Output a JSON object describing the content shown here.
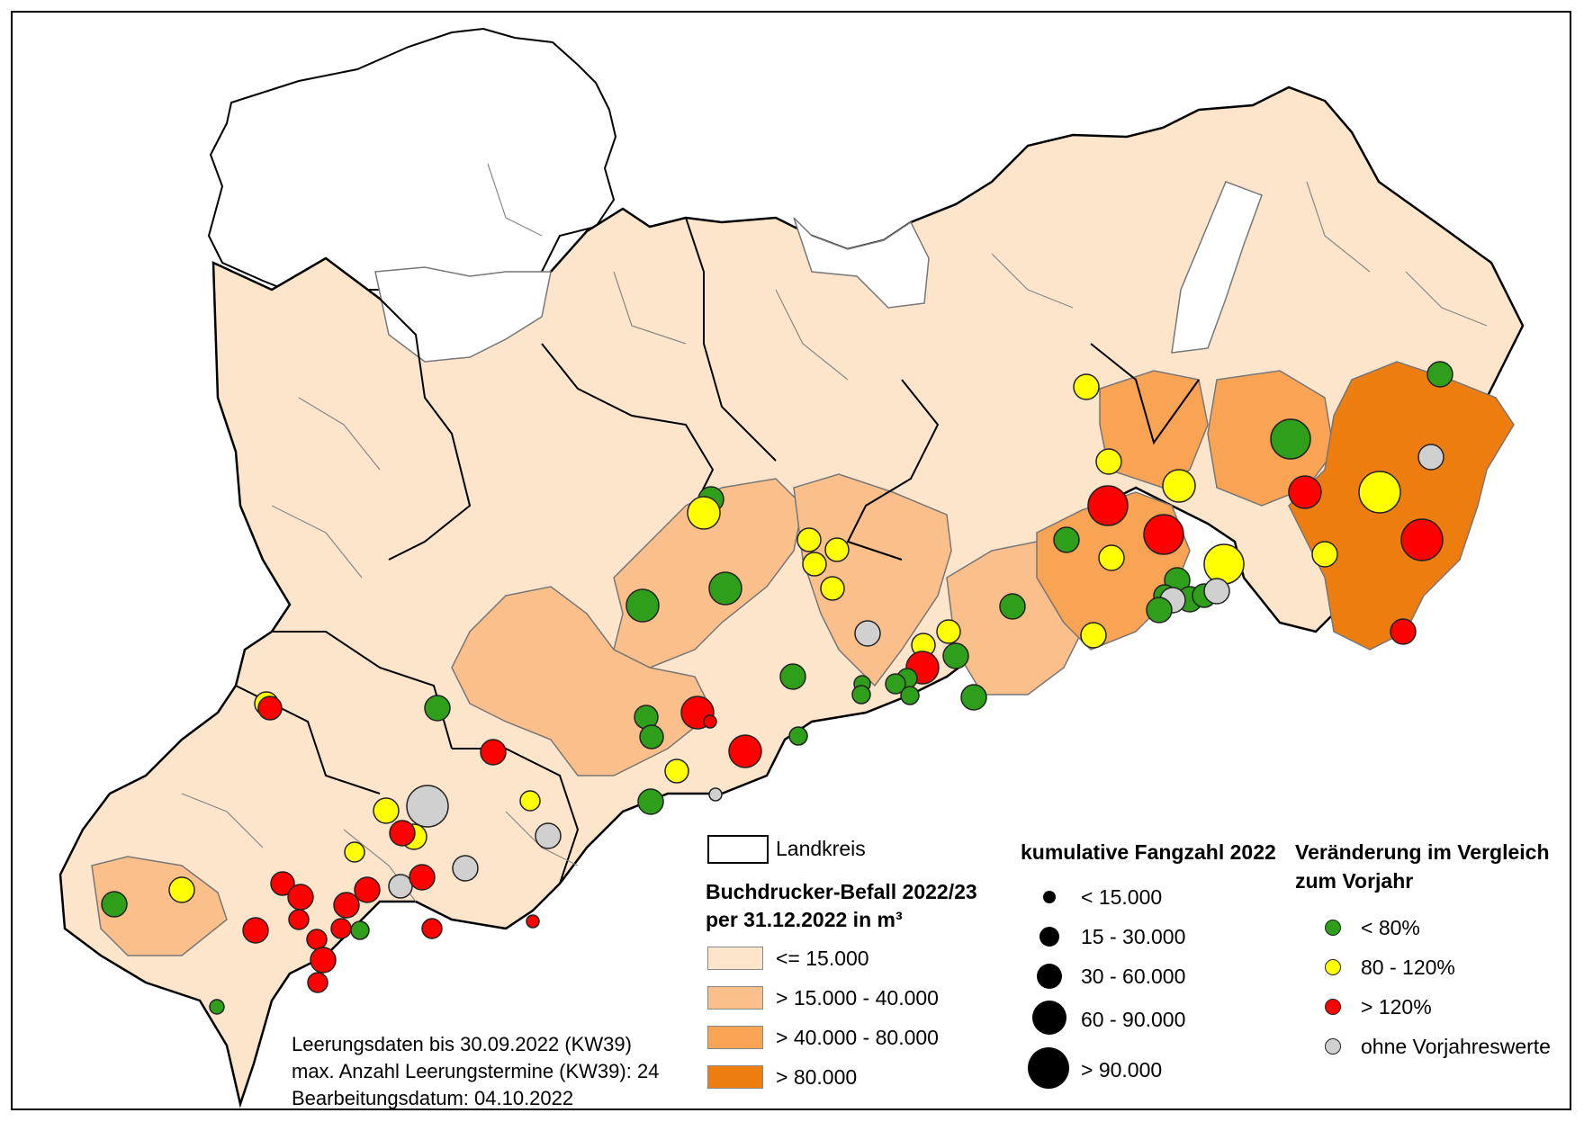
{
  "colors": {
    "class1": "#FDE5CC",
    "class2": "#FBBF8B",
    "class3": "#F9A354",
    "class4": "#EE7D10",
    "white": "#FFFFFF",
    "green": "#2E9E1B",
    "yellow": "#FFFF00",
    "red": "#FF0000",
    "grey": "#D0D0D0"
  },
  "legend_landkreis": {
    "label": "Landkreis"
  },
  "legend_befall": {
    "title_line1": "Buchdrucker-Befall 2022/23",
    "title_line2": "per 31.12.2022 in m³",
    "items": [
      {
        "label": "<= 15.000",
        "color": "#FDE5CC"
      },
      {
        "label": "> 15.000 - 40.000",
        "color": "#FBBF8B"
      },
      {
        "label": "> 40.000 - 80.000",
        "color": "#F9A354"
      },
      {
        "label": "> 80.000",
        "color": "#EE7D10"
      }
    ]
  },
  "legend_fangzahl": {
    "title": "kumulative Fangzahl 2022",
    "items": [
      {
        "label": "< 15.000",
        "size": 1
      },
      {
        "label": "15 - 30.000",
        "size": 2
      },
      {
        "label": "30 - 60.000",
        "size": 3
      },
      {
        "label": "60 - 90.000",
        "size": 4
      },
      {
        "label": "> 90.000",
        "size": 5
      }
    ]
  },
  "legend_change": {
    "title_line1": "Veränderung im Vergleich",
    "title_line2": "zum Vorjahr",
    "items": [
      {
        "label": "< 80%",
        "color": "#2E9E1B"
      },
      {
        "label": "80 - 120%",
        "color": "#FFFF00"
      },
      {
        "label": "> 120%",
        "color": "#FF0000"
      },
      {
        "label": "ohne Vorjahreswerte",
        "color": "#D0D0D0"
      }
    ]
  },
  "notes": {
    "line1": "Leerungsdaten bis 30.09.2022 (KW39)",
    "line2": "max. Anzahl Leerungstermine (KW39): 24",
    "line3": "Bearbeitungsdatum: 04.10.2022"
  }
}
